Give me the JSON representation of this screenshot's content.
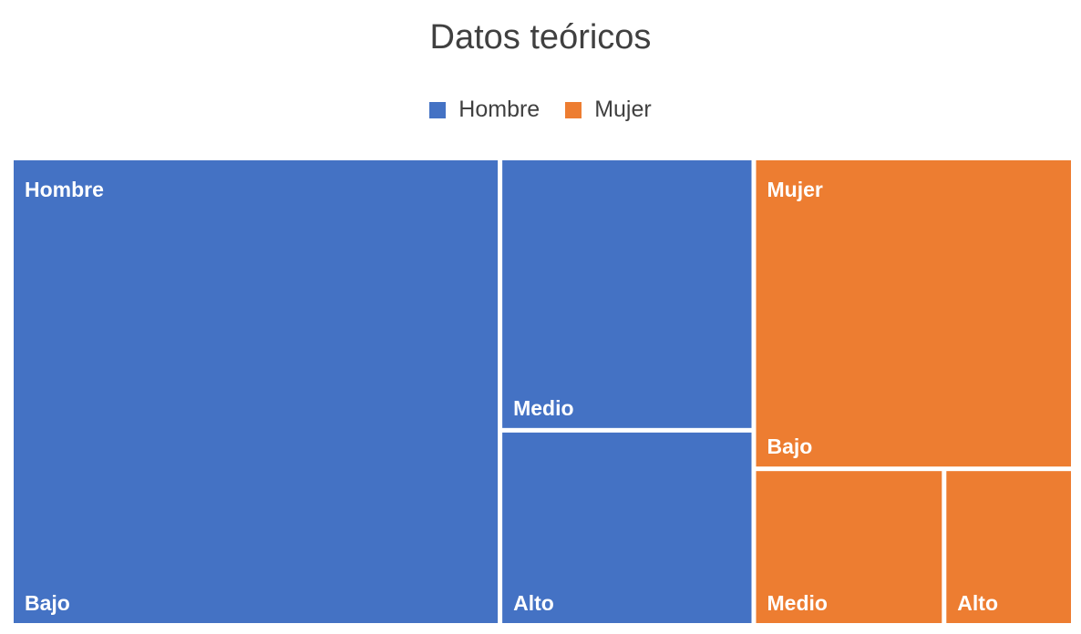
{
  "chart_data": {
    "type": "treemap",
    "title": "Datos teóricos",
    "legend": {
      "placement": "top",
      "entries": [
        {
          "name": "Hombre",
          "color": "#4472C4"
        },
        {
          "name": "Mujer",
          "color": "#ED7D31"
        }
      ]
    },
    "groups": [
      {
        "name": "Hombre",
        "color": "#4472C4",
        "items": [
          {
            "label": "Bajo",
            "value": 46
          },
          {
            "label": "Medio",
            "value": 14
          },
          {
            "label": "Alto",
            "value": 10
          }
        ]
      },
      {
        "name": "Mujer",
        "color": "#ED7D31",
        "items": [
          {
            "label": "Bajo",
            "value": 20
          },
          {
            "label": "Medio",
            "value": 6
          },
          {
            "label": "Alto",
            "value": 4
          }
        ]
      }
    ]
  }
}
